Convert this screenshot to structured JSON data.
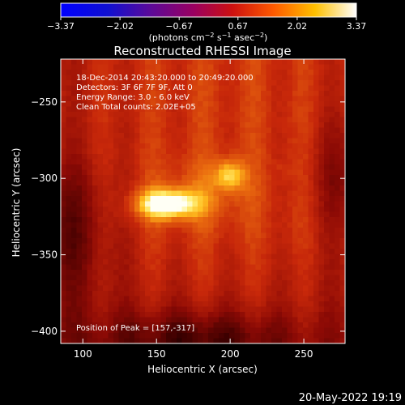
{
  "chart_data": {
    "type": "heatmap",
    "title": "Reconstructed RHESSI Image",
    "xlabel": "Heliocentric X (arcsec)",
    "ylabel": "Heliocentric Y (arcsec)",
    "xlim": [
      85,
      278
    ],
    "ylim": [
      -408,
      -222
    ],
    "x_ticks": [
      100,
      150,
      200,
      250
    ],
    "y_ticks": [
      -250,
      -300,
      -350,
      -400
    ],
    "x_tick_labels": [
      "100",
      "150",
      "200",
      "250"
    ],
    "y_tick_labels": [
      "−250",
      "−300",
      "−350",
      "−400"
    ],
    "colormap": "red-temperature",
    "colorbar": {
      "tick_values": [
        -3.37,
        -2.02,
        -0.67,
        0.67,
        2.02,
        3.37
      ],
      "tick_labels": [
        "−3.37",
        "−2.02",
        "−0.67",
        "0.67",
        "2.02",
        "3.37"
      ],
      "unit_label": [
        "(photons cm",
        "−2",
        " s",
        "−1",
        " asec",
        "−2",
        ")"
      ]
    },
    "sources": [
      {
        "x": 157,
        "y": -317,
        "intensity": 3.37
      },
      {
        "x": 200,
        "y": -298,
        "intensity": 2.6
      },
      {
        "x": 236,
        "y": -293,
        "intensity": 0.9
      }
    ],
    "annotations": [
      "18-Dec-2014 20:43:20.000 to 20:49:20.000",
      "Detectors: 3F 6F 7F 9F, Att 0",
      "Energy Range: 3.0 - 6.0 keV",
      "Clean    Total counts: 2.02E+05",
      "Position of Peak = [157,-317]"
    ],
    "timestamp": "20-May-2022 19:19"
  }
}
